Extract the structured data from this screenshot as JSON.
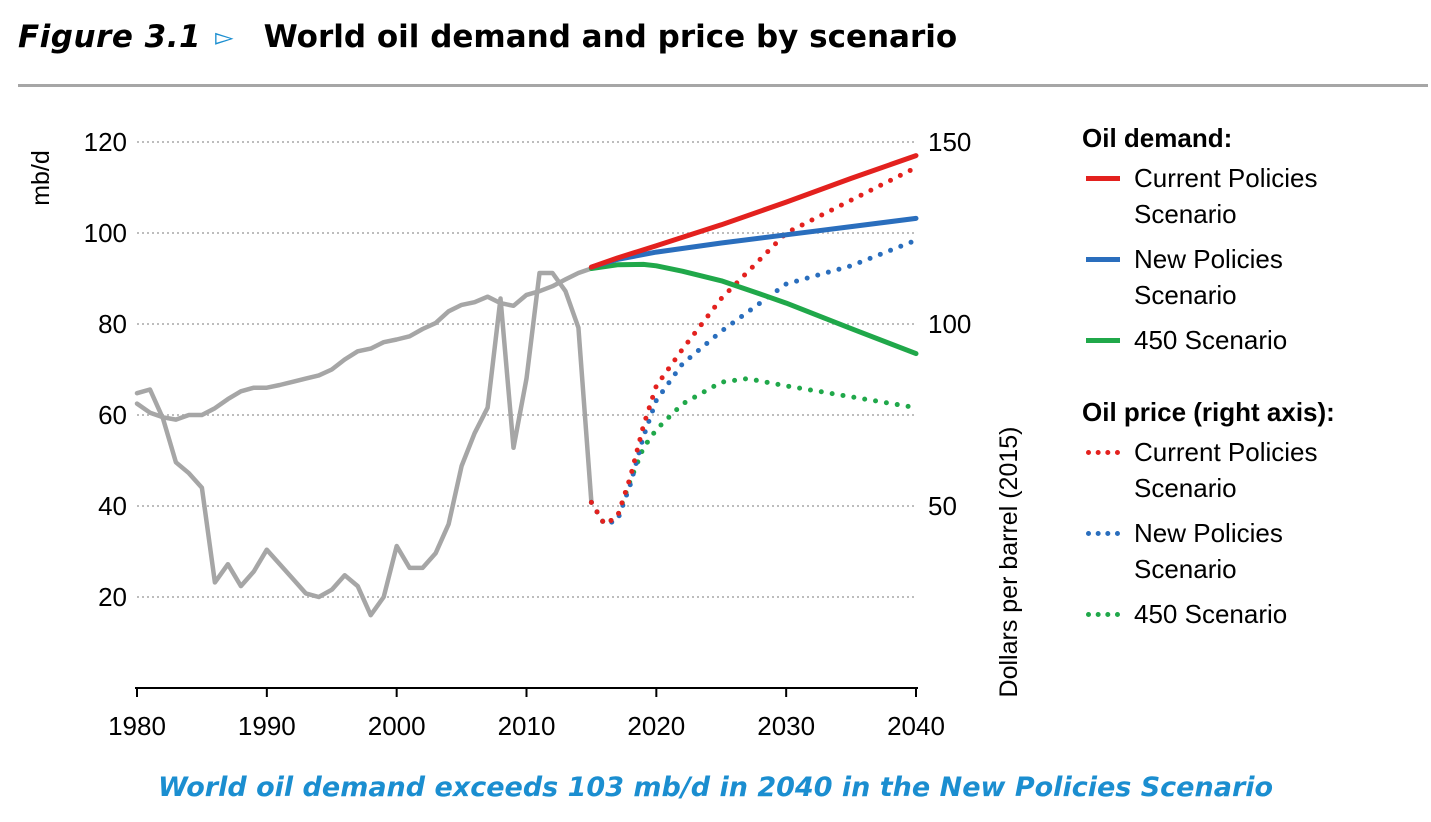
{
  "header": {
    "figure_label": "Figure 3.1",
    "arrow": "▻",
    "title": "World oil demand and price by scenario"
  },
  "caption": "World oil demand exceeds 103 mb/d in 2040 in the New Policies Scenario",
  "legend": {
    "demand_heading": "Oil demand:",
    "price_heading": "Oil price (right axis):",
    "items": [
      "Current Policies Scenario",
      "New Policies Scenario",
      "450 Scenario"
    ]
  },
  "chart_data": {
    "type": "line",
    "x_range": [
      1980,
      2040
    ],
    "x_ticks": [
      "1980",
      "1990",
      "2000",
      "2010",
      "2020",
      "2030",
      "2040"
    ],
    "left_axis": {
      "label": "mb/d",
      "range": [
        0,
        120
      ],
      "ticks": [
        "20",
        "40",
        "60",
        "80",
        "100",
        "120"
      ]
    },
    "right_axis": {
      "label": "Dollars per barrel (2015)",
      "range": [
        0,
        150
      ],
      "ticks": [
        "50",
        "100",
        "150"
      ]
    },
    "grid": true,
    "colors": {
      "current": "#e3211e",
      "new": "#2a6ebd",
      "s450": "#20a84a",
      "historical": "#a6a6a6"
    },
    "demand_series": [
      {
        "name": "Historical demand",
        "style": "solid",
        "color_key": "historical",
        "x": [
          1980,
          1981,
          1982,
          1983,
          1984,
          1985,
          1986,
          1987,
          1988,
          1989,
          1990,
          1991,
          1992,
          1993,
          1994,
          1995,
          1996,
          1997,
          1998,
          1999,
          2000,
          2001,
          2002,
          2003,
          2004,
          2005,
          2006,
          2007,
          2008,
          2009,
          2010,
          2011,
          2012,
          2013,
          2014,
          2015
        ],
        "y": [
          62.5,
          60.5,
          59.5,
          59,
          60,
          60,
          61.5,
          63.5,
          65.2,
          66,
          66,
          66.6,
          67.3,
          68,
          68.7,
          70,
          72.2,
          74,
          74.6,
          76,
          76.6,
          77.3,
          78.9,
          80.2,
          82.8,
          84.2,
          84.8,
          86,
          84.6,
          84,
          86.4,
          87.2,
          88.3,
          89.8,
          91.2,
          92.2
        ]
      },
      {
        "name": "Current Policies Scenario",
        "style": "solid",
        "color_key": "current",
        "x": [
          2015,
          2017,
          2020,
          2025,
          2030,
          2035,
          2040
        ],
        "y": [
          92.5,
          94.5,
          97.2,
          101.8,
          106.8,
          112.0,
          117.0
        ]
      },
      {
        "name": "New Policies Scenario",
        "style": "solid",
        "color_key": "new",
        "x": [
          2015,
          2017,
          2020,
          2025,
          2030,
          2035,
          2040
        ],
        "y": [
          92.5,
          94.2,
          95.8,
          97.8,
          99.6,
          101.4,
          103.2
        ]
      },
      {
        "name": "450 Scenario",
        "style": "solid",
        "color_key": "s450",
        "x": [
          2015,
          2017,
          2019,
          2020,
          2022,
          2025,
          2028,
          2030,
          2035,
          2040
        ],
        "y": [
          92.2,
          93,
          93.1,
          92.8,
          91.6,
          89.5,
          86.6,
          84.6,
          79.0,
          73.5
        ]
      }
    ],
    "price_series": [
      {
        "name": "Historical price",
        "style": "solid",
        "color_key": "historical",
        "x": [
          1980,
          1981,
          1982,
          1983,
          1984,
          1985,
          1986,
          1987,
          1988,
          1989,
          1990,
          1991,
          1992,
          1993,
          1994,
          1995,
          1996,
          1997,
          1998,
          1999,
          2000,
          2001,
          2002,
          2003,
          2004,
          2005,
          2006,
          2007,
          2008,
          2009,
          2010,
          2011,
          2012,
          2013,
          2014,
          2015
        ],
        "y": [
          81,
          82,
          74,
          62,
          59,
          55,
          29,
          34,
          28,
          32,
          38,
          34,
          30,
          26,
          25,
          27,
          31,
          28,
          20,
          25,
          39,
          33,
          33,
          37,
          45,
          61,
          70,
          77,
          107,
          66,
          85,
          114,
          114,
          109,
          99,
          51
        ]
      },
      {
        "name": "Current Policies Scenario",
        "style": "dotted",
        "color_key": "current",
        "x": [
          2015,
          2016,
          2017,
          2018,
          2019,
          2020,
          2022,
          2025,
          2030,
          2035,
          2040
        ],
        "y": [
          51,
          45,
          47,
          58,
          72,
          83,
          93,
          107,
          125,
          134,
          143
        ]
      },
      {
        "name": "New Policies Scenario",
        "style": "dotted",
        "color_key": "new",
        "x": [
          2015,
          2016,
          2017,
          2018,
          2019,
          2020,
          2022,
          2025,
          2030,
          2035,
          2040
        ],
        "y": [
          51,
          45,
          46,
          56,
          69,
          79,
          89,
          98,
          111,
          116,
          123
        ]
      },
      {
        "name": "450 Scenario",
        "style": "dotted",
        "color_key": "s450",
        "x": [
          2015,
          2016,
          2017,
          2018,
          2019,
          2020,
          2022,
          2025,
          2027,
          2030,
          2035,
          2040
        ],
        "y": [
          51,
          45,
          47,
          57,
          66,
          71,
          78,
          84,
          85,
          83,
          80,
          77
        ]
      }
    ]
  }
}
